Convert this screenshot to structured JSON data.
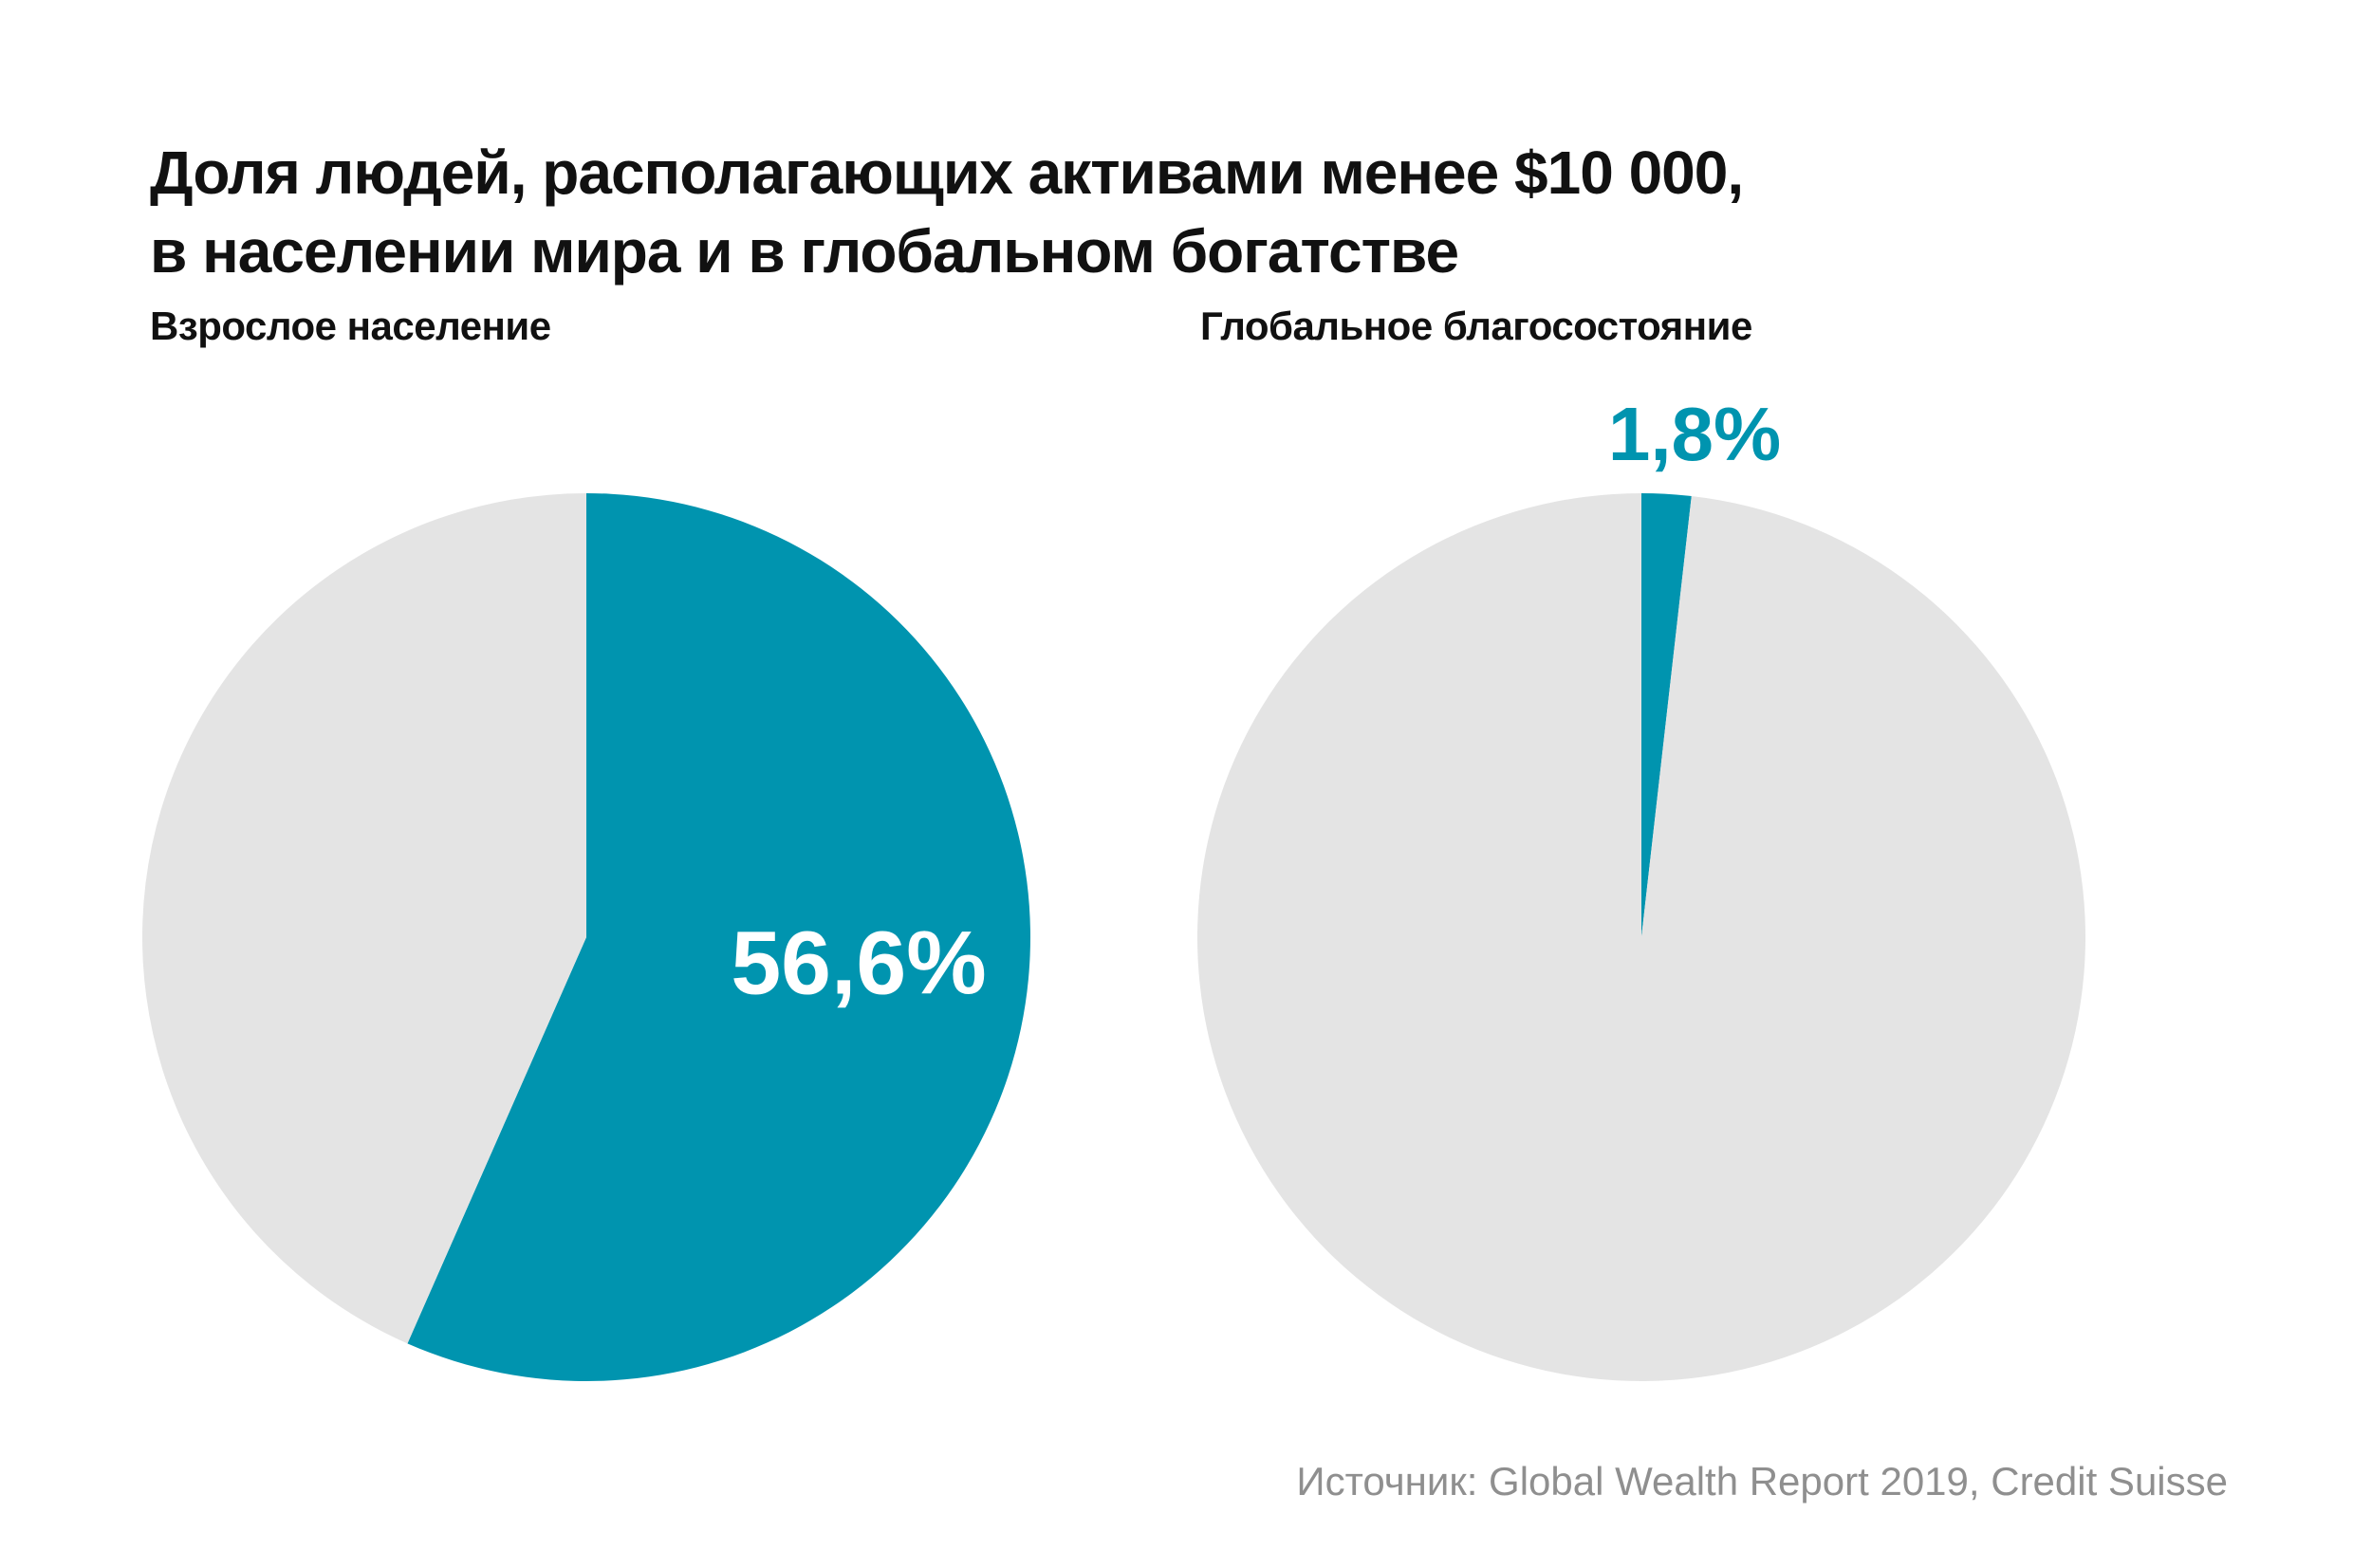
{
  "page": {
    "title": "Доля людей, располагающих активами менее $10 000,\nв населении мира и в глобальном богатстве",
    "source": "Источник: Global Wealth Report 2019, Credit Suisse"
  },
  "colors": {
    "accent_teal": "#0094AF",
    "slice_gray": "#E4E4E4",
    "title_text": "#111111",
    "source_text": "#8F8F8F",
    "background": "#FFFFFF",
    "label_on_slice": "#FFFFFF"
  },
  "chart_data": [
    {
      "type": "pie",
      "title": "Взрослое население",
      "start_angle_deg_from_top": 0,
      "direction": "clockwise",
      "legend": "none",
      "slices": [
        {
          "value": 56.6,
          "display_label": "56,6%",
          "color": "#0094AF"
        },
        {
          "value": 43.4,
          "display_label": "",
          "color": "#E4E4E4"
        }
      ]
    },
    {
      "type": "pie",
      "title": "Глобальное благосостояние",
      "start_angle_deg_from_top": 0,
      "direction": "clockwise",
      "legend": "none",
      "slices": [
        {
          "value": 1.8,
          "display_label": "1,8%",
          "color": "#0094AF"
        },
        {
          "value": 98.2,
          "display_label": "",
          "color": "#E4E4E4"
        }
      ]
    }
  ]
}
